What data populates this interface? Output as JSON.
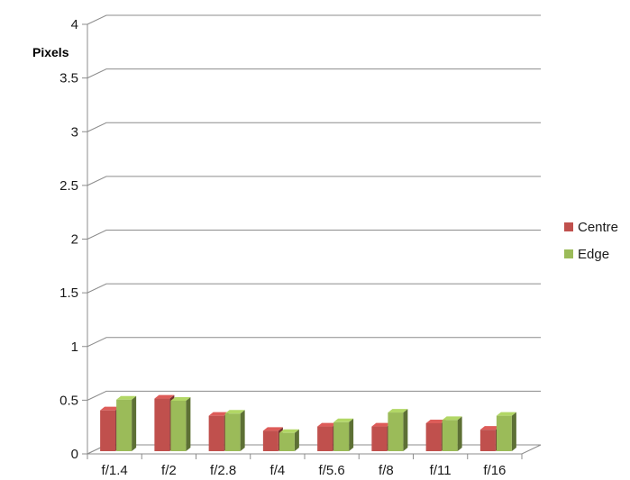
{
  "chart_data": {
    "type": "bar",
    "title": "",
    "xlabel": "",
    "ylabel": "Pixels",
    "categories": [
      "f/1.4",
      "f/2",
      "f/2.8",
      "f/4",
      "f/5.6",
      "f/8",
      "f/11",
      "f/16"
    ],
    "series": [
      {
        "name": "Centre",
        "values": [
          0.38,
          0.49,
          0.33,
          0.19,
          0.23,
          0.23,
          0.26,
          0.2
        ],
        "color": "#c0504d"
      },
      {
        "name": "Edge",
        "values": [
          0.48,
          0.47,
          0.35,
          0.17,
          0.27,
          0.36,
          0.29,
          0.33
        ],
        "color": "#9bbb59"
      }
    ],
    "ylim": [
      0,
      4
    ],
    "yticks": [
      "0",
      "0.5",
      "1",
      "1.5",
      "2",
      "2.5",
      "3",
      "3.5",
      "4"
    ],
    "grid": true,
    "legend": "right"
  }
}
